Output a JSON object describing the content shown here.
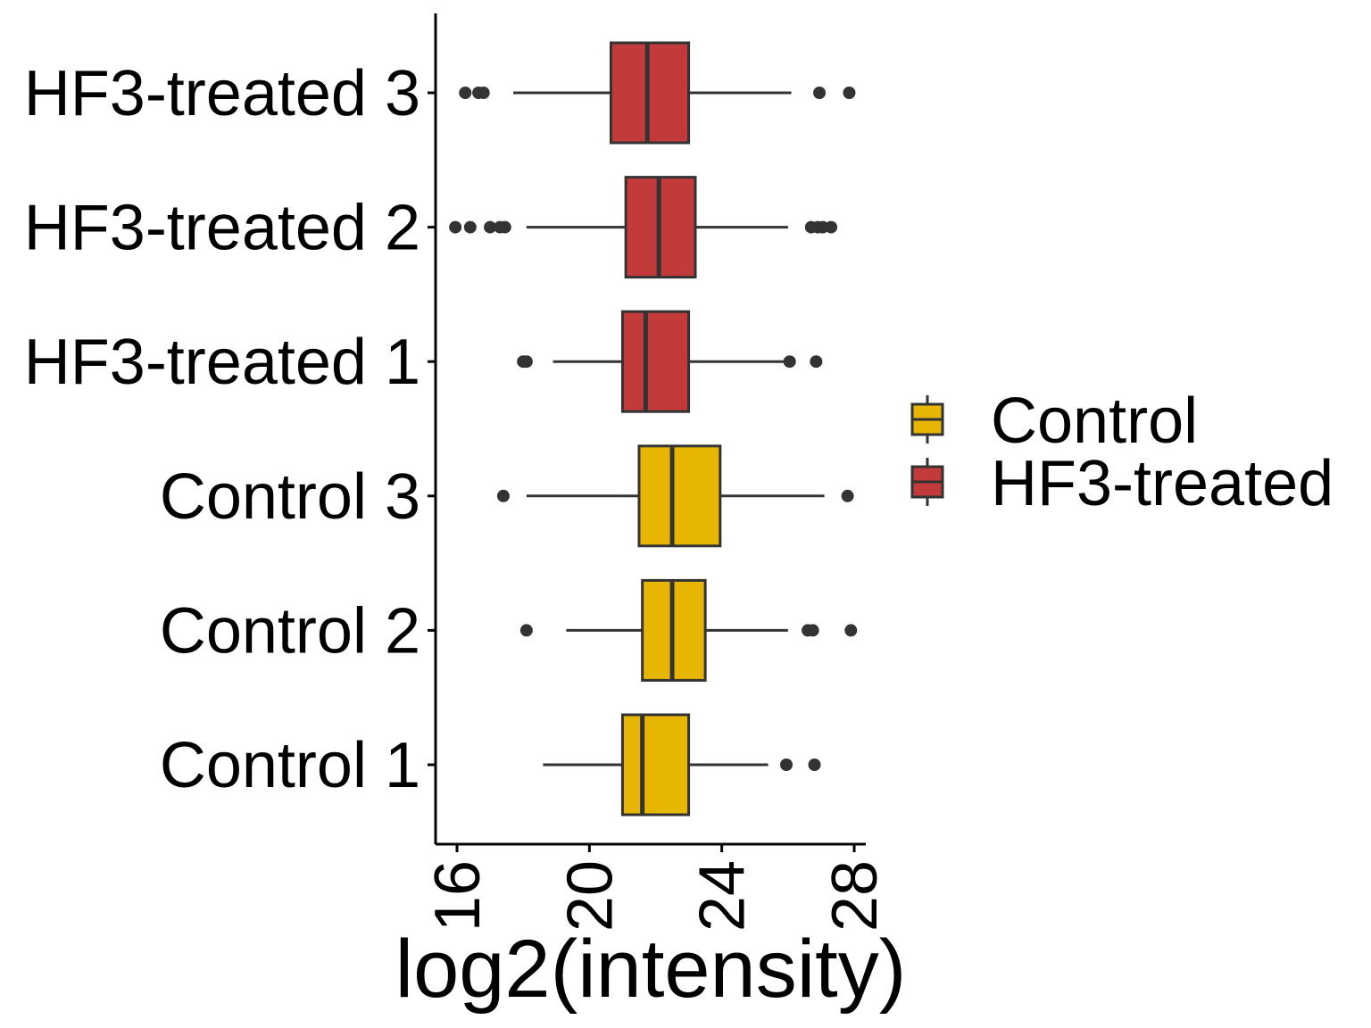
{
  "chart_data": {
    "type": "boxplot",
    "orientation": "horizontal",
    "title": "",
    "xlabel": "log2(intensity)",
    "ylabel": "",
    "xlim": [
      15.4,
      28.5
    ],
    "x_ticks": [
      16,
      20,
      24,
      28
    ],
    "x_tick_labels": [
      "16",
      "20",
      "24",
      "28"
    ],
    "grid": false,
    "legend_position": "right",
    "legend": [
      {
        "name": "Control",
        "color": "#E7B503"
      },
      {
        "name": "HF3-treated",
        "color": "#C23B3A"
      }
    ],
    "categories": [
      "Control 1",
      "Control 2",
      "Control 3",
      "HF3-treated 1",
      "HF3-treated 2",
      "HF3-treated 3"
    ],
    "boxes": [
      {
        "label": "Control 1",
        "group": "Control",
        "whisker_low": 18.6,
        "q1": 21.0,
        "median": 21.6,
        "q3": 23.0,
        "whisker_high": 25.4,
        "outliers": [
          25.95,
          26.8
        ]
      },
      {
        "label": "Control 2",
        "group": "Control",
        "whisker_low": 19.3,
        "q1": 21.6,
        "median": 22.5,
        "q3": 23.5,
        "whisker_high": 26.0,
        "outliers": [
          18.1,
          26.6,
          26.75,
          27.9
        ]
      },
      {
        "label": "Control 3",
        "group": "Control",
        "whisker_low": 18.1,
        "q1": 21.5,
        "median": 22.5,
        "q3": 23.95,
        "whisker_high": 27.1,
        "outliers": [
          17.4,
          27.8
        ]
      },
      {
        "label": "HF3-treated 1",
        "group": "HF3-treated",
        "whisker_low": 18.9,
        "q1": 21.0,
        "median": 21.7,
        "q3": 23.0,
        "whisker_high": 25.9,
        "outliers": [
          18.0,
          18.1,
          26.05,
          26.85
        ]
      },
      {
        "label": "HF3-treated 2",
        "group": "HF3-treated",
        "whisker_low": 18.1,
        "q1": 21.1,
        "median": 22.1,
        "q3": 23.2,
        "whisker_high": 26.0,
        "outliers": [
          15.95,
          16.4,
          17.0,
          17.3,
          17.45,
          26.7,
          26.9,
          27.05,
          27.3
        ]
      },
      {
        "label": "HF3-treated 3",
        "group": "HF3-treated",
        "whisker_low": 17.7,
        "q1": 20.65,
        "median": 21.75,
        "q3": 23.0,
        "whisker_high": 26.1,
        "outliers": [
          16.25,
          16.65,
          16.8,
          26.95,
          27.85
        ]
      }
    ]
  }
}
